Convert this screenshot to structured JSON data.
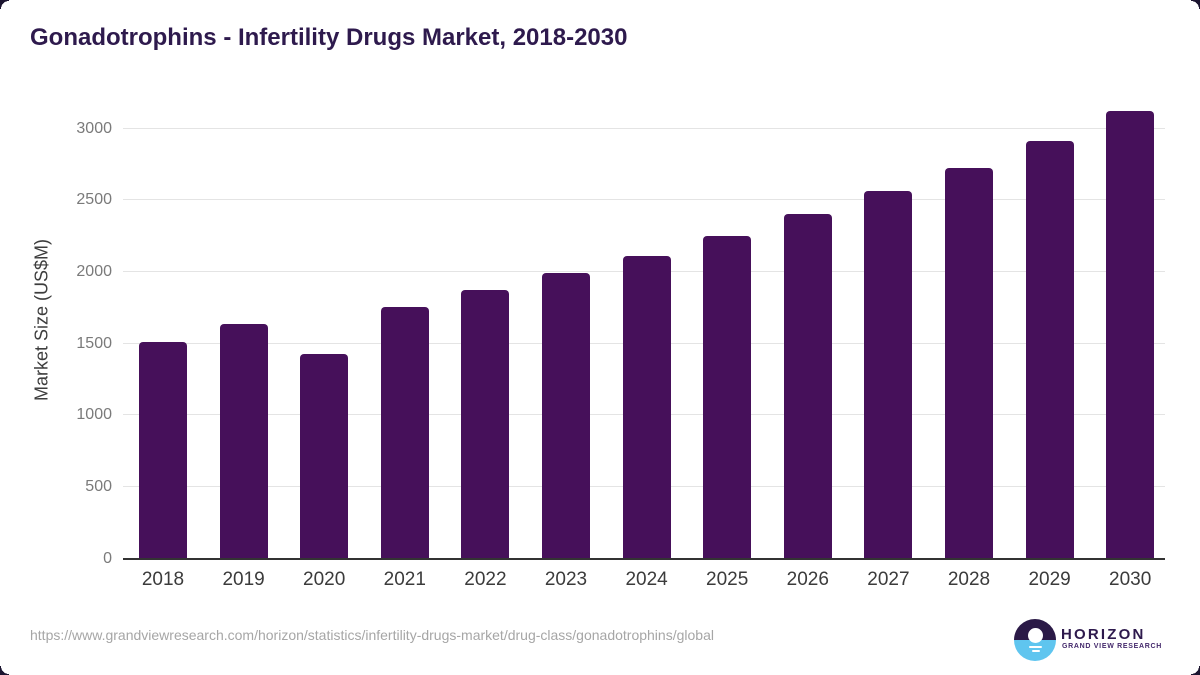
{
  "page": {
    "title": "Gonadotrophins - Infertility Drugs Market, 2018-2030"
  },
  "chart_data": {
    "type": "bar",
    "title": "Gonadotrophins - Infertility Drugs Market, 2018-2030",
    "categories": [
      "2018",
      "2019",
      "2020",
      "2021",
      "2022",
      "2023",
      "2024",
      "2025",
      "2026",
      "2027",
      "2028",
      "2029",
      "2030"
    ],
    "values": [
      1510,
      1630,
      1420,
      1750,
      1870,
      1990,
      2110,
      2250,
      2400,
      2560,
      2720,
      2910,
      3120
    ],
    "series_name": "Market Size",
    "xlabel": "",
    "ylabel": "Market Size (US$M)",
    "yticks": [
      0,
      500,
      1000,
      1500,
      2000,
      2500,
      3000
    ],
    "ylim": [
      0,
      3200
    ],
    "grid": "horizontal",
    "legend": "none",
    "bar_color": "#46105a"
  },
  "colors": {
    "bar": "#46105a",
    "title": "#2e1a4d",
    "axis_title": "#3d3d3d",
    "x_tick_label": "#3b3b3b",
    "y_tick_label": "#7a7a7a",
    "gridline": "#e4e4e4",
    "axis_line": "#333333",
    "url_text": "#a6a6a6",
    "logo_sky": "#2b1a47",
    "logo_sea": "#5fc5ef"
  },
  "footer": {
    "source_url": "https://www.grandviewresearch.com/horizon/statistics/infertility-drugs-market/drug-class/gonadotrophins/global",
    "logo": {
      "brand": "HORIZON",
      "tagline": "GRAND VIEW RESEARCH"
    }
  }
}
